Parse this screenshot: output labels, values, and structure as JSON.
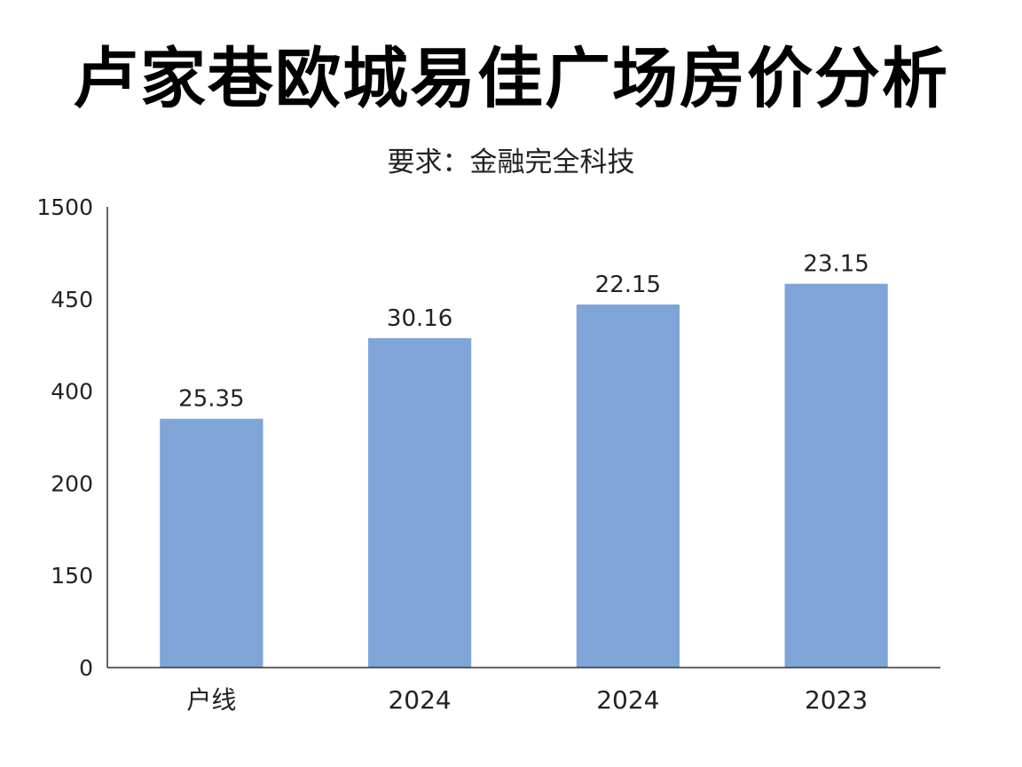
{
  "chart_data": {
    "type": "bar",
    "title": "卢家巷欧城易佳广场房价分析",
    "subtitle": "要求：金融完全科技",
    "y_tick_labels": [
      "1500",
      "450",
      "400",
      "200",
      "150",
      "0"
    ],
    "categories": [
      "户线",
      "2024",
      "2024",
      "2023"
    ],
    "values": [
      25.35,
      30.16,
      22.15,
      23.15
    ],
    "data_labels": [
      "25.35",
      "30.16",
      "22.15",
      "23.15"
    ],
    "bar_levels": [
      0.54,
      0.715,
      0.788,
      0.833
    ],
    "grid": false,
    "legend": "none",
    "bar_color": "#7ea4d8",
    "axis_color": "#333333"
  }
}
